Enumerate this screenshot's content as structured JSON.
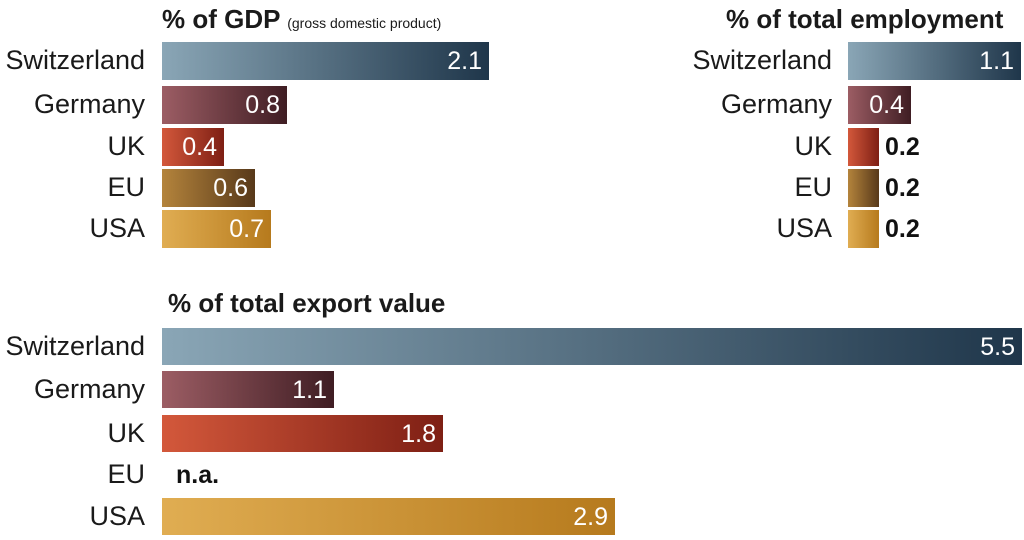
{
  "colors": {
    "Switzerland": [
      "#8aa6b6",
      "#1f364a"
    ],
    "Germany": [
      "#9c5d64",
      "#3f1d23"
    ],
    "UK": [
      "#d3583b",
      "#7e1f14"
    ],
    "EU": [
      "#b4843c",
      "#58391a"
    ],
    "USA": [
      "#e0ad52",
      "#b67a1d"
    ]
  },
  "chart_data": [
    {
      "type": "bar",
      "orientation": "horizontal",
      "title": "% of GDP",
      "subtitle": "(gross domestic product)",
      "categories": [
        "Switzerland",
        "Germany",
        "UK",
        "EU",
        "USA"
      ],
      "values": [
        2.1,
        0.8,
        0.4,
        0.6,
        0.7
      ],
      "value_labels": [
        "2.1",
        "0.8",
        "0.4",
        "0.6",
        "0.7"
      ],
      "xlim": [
        0,
        2.1
      ]
    },
    {
      "type": "bar",
      "orientation": "horizontal",
      "title": "% of total employment",
      "categories": [
        "Switzerland",
        "Germany",
        "UK",
        "EU",
        "USA"
      ],
      "values": [
        1.1,
        0.4,
        0.2,
        0.2,
        0.2
      ],
      "value_labels": [
        "1.1",
        "0.4",
        "0.2",
        "0.2",
        "0.2"
      ],
      "xlim": [
        0,
        1.1
      ]
    },
    {
      "type": "bar",
      "orientation": "horizontal",
      "title": "% of total export value",
      "categories": [
        "Switzerland",
        "Germany",
        "UK",
        "EU",
        "USA"
      ],
      "values": [
        5.5,
        1.1,
        1.8,
        null,
        2.9
      ],
      "value_labels": [
        "5.5",
        "1.1",
        "1.8",
        "n.a.",
        "2.9"
      ],
      "xlim": [
        0,
        5.5
      ]
    }
  ]
}
